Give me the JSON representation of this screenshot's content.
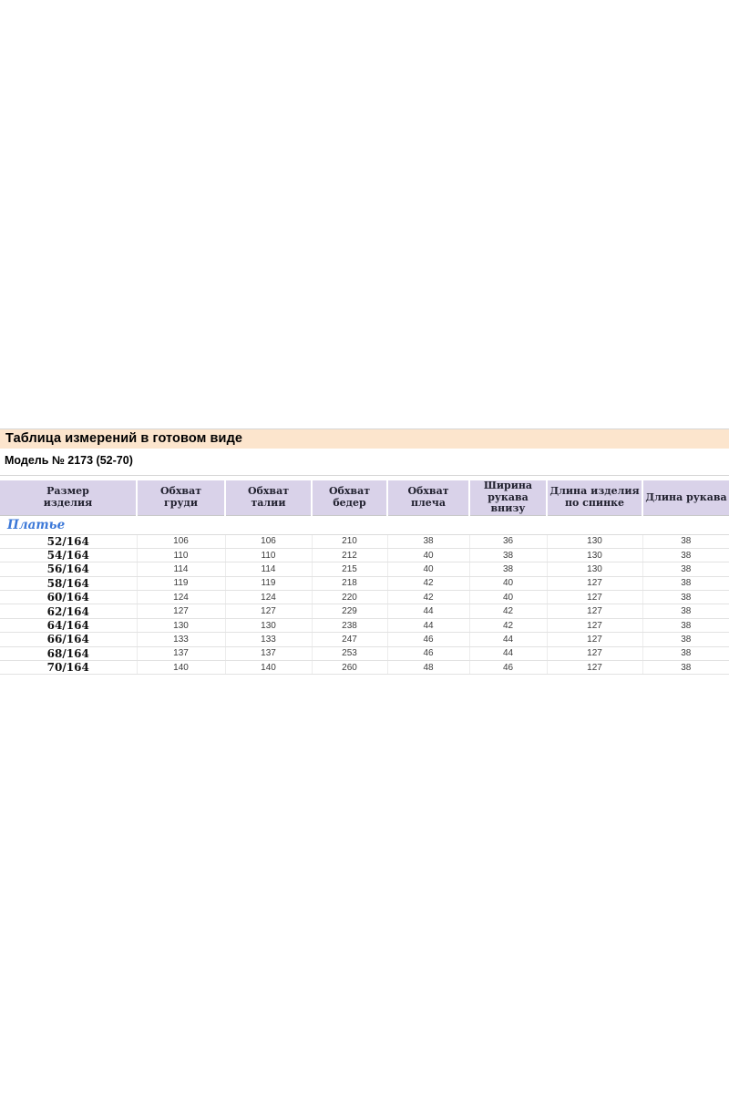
{
  "section": {
    "title": "Таблица измерений в готовом виде",
    "model": "Модель № 2173 (52-70)"
  },
  "colors": {
    "title_bar_bg": "#fce5cd",
    "header_bg": "#d9d2e9",
    "group_label_color": "#3c78d8"
  },
  "table": {
    "columns": [
      "Размер\nизделия",
      "Обхват\nгруди",
      "Обхват\nталии",
      "Обхват\nбедер",
      "Обхват\nплеча",
      "Ширина\nрукава внизу",
      "Длина изделия\nпо спинке",
      "Длина рукава"
    ],
    "group_label": "Платье",
    "rows": [
      {
        "size": "52/164",
        "values": [
          "106",
          "106",
          "210",
          "38",
          "36",
          "130",
          "38"
        ]
      },
      {
        "size": "54/164",
        "values": [
          "110",
          "110",
          "212",
          "40",
          "38",
          "130",
          "38"
        ]
      },
      {
        "size": "56/164",
        "values": [
          "114",
          "114",
          "215",
          "40",
          "38",
          "130",
          "38"
        ]
      },
      {
        "size": "58/164",
        "values": [
          "119",
          "119",
          "218",
          "42",
          "40",
          "127",
          "38"
        ]
      },
      {
        "size": "60/164",
        "values": [
          "124",
          "124",
          "220",
          "42",
          "40",
          "127",
          "38"
        ]
      },
      {
        "size": "62/164",
        "values": [
          "127",
          "127",
          "229",
          "44",
          "42",
          "127",
          "38"
        ]
      },
      {
        "size": "64/164",
        "values": [
          "130",
          "130",
          "238",
          "44",
          "42",
          "127",
          "38"
        ]
      },
      {
        "size": "66/164",
        "values": [
          "133",
          "133",
          "247",
          "46",
          "44",
          "127",
          "38"
        ]
      },
      {
        "size": "68/164",
        "values": [
          "137",
          "137",
          "253",
          "46",
          "44",
          "127",
          "38"
        ]
      },
      {
        "size": "70/164",
        "values": [
          "140",
          "140",
          "260",
          "48",
          "46",
          "127",
          "38"
        ]
      }
    ]
  }
}
